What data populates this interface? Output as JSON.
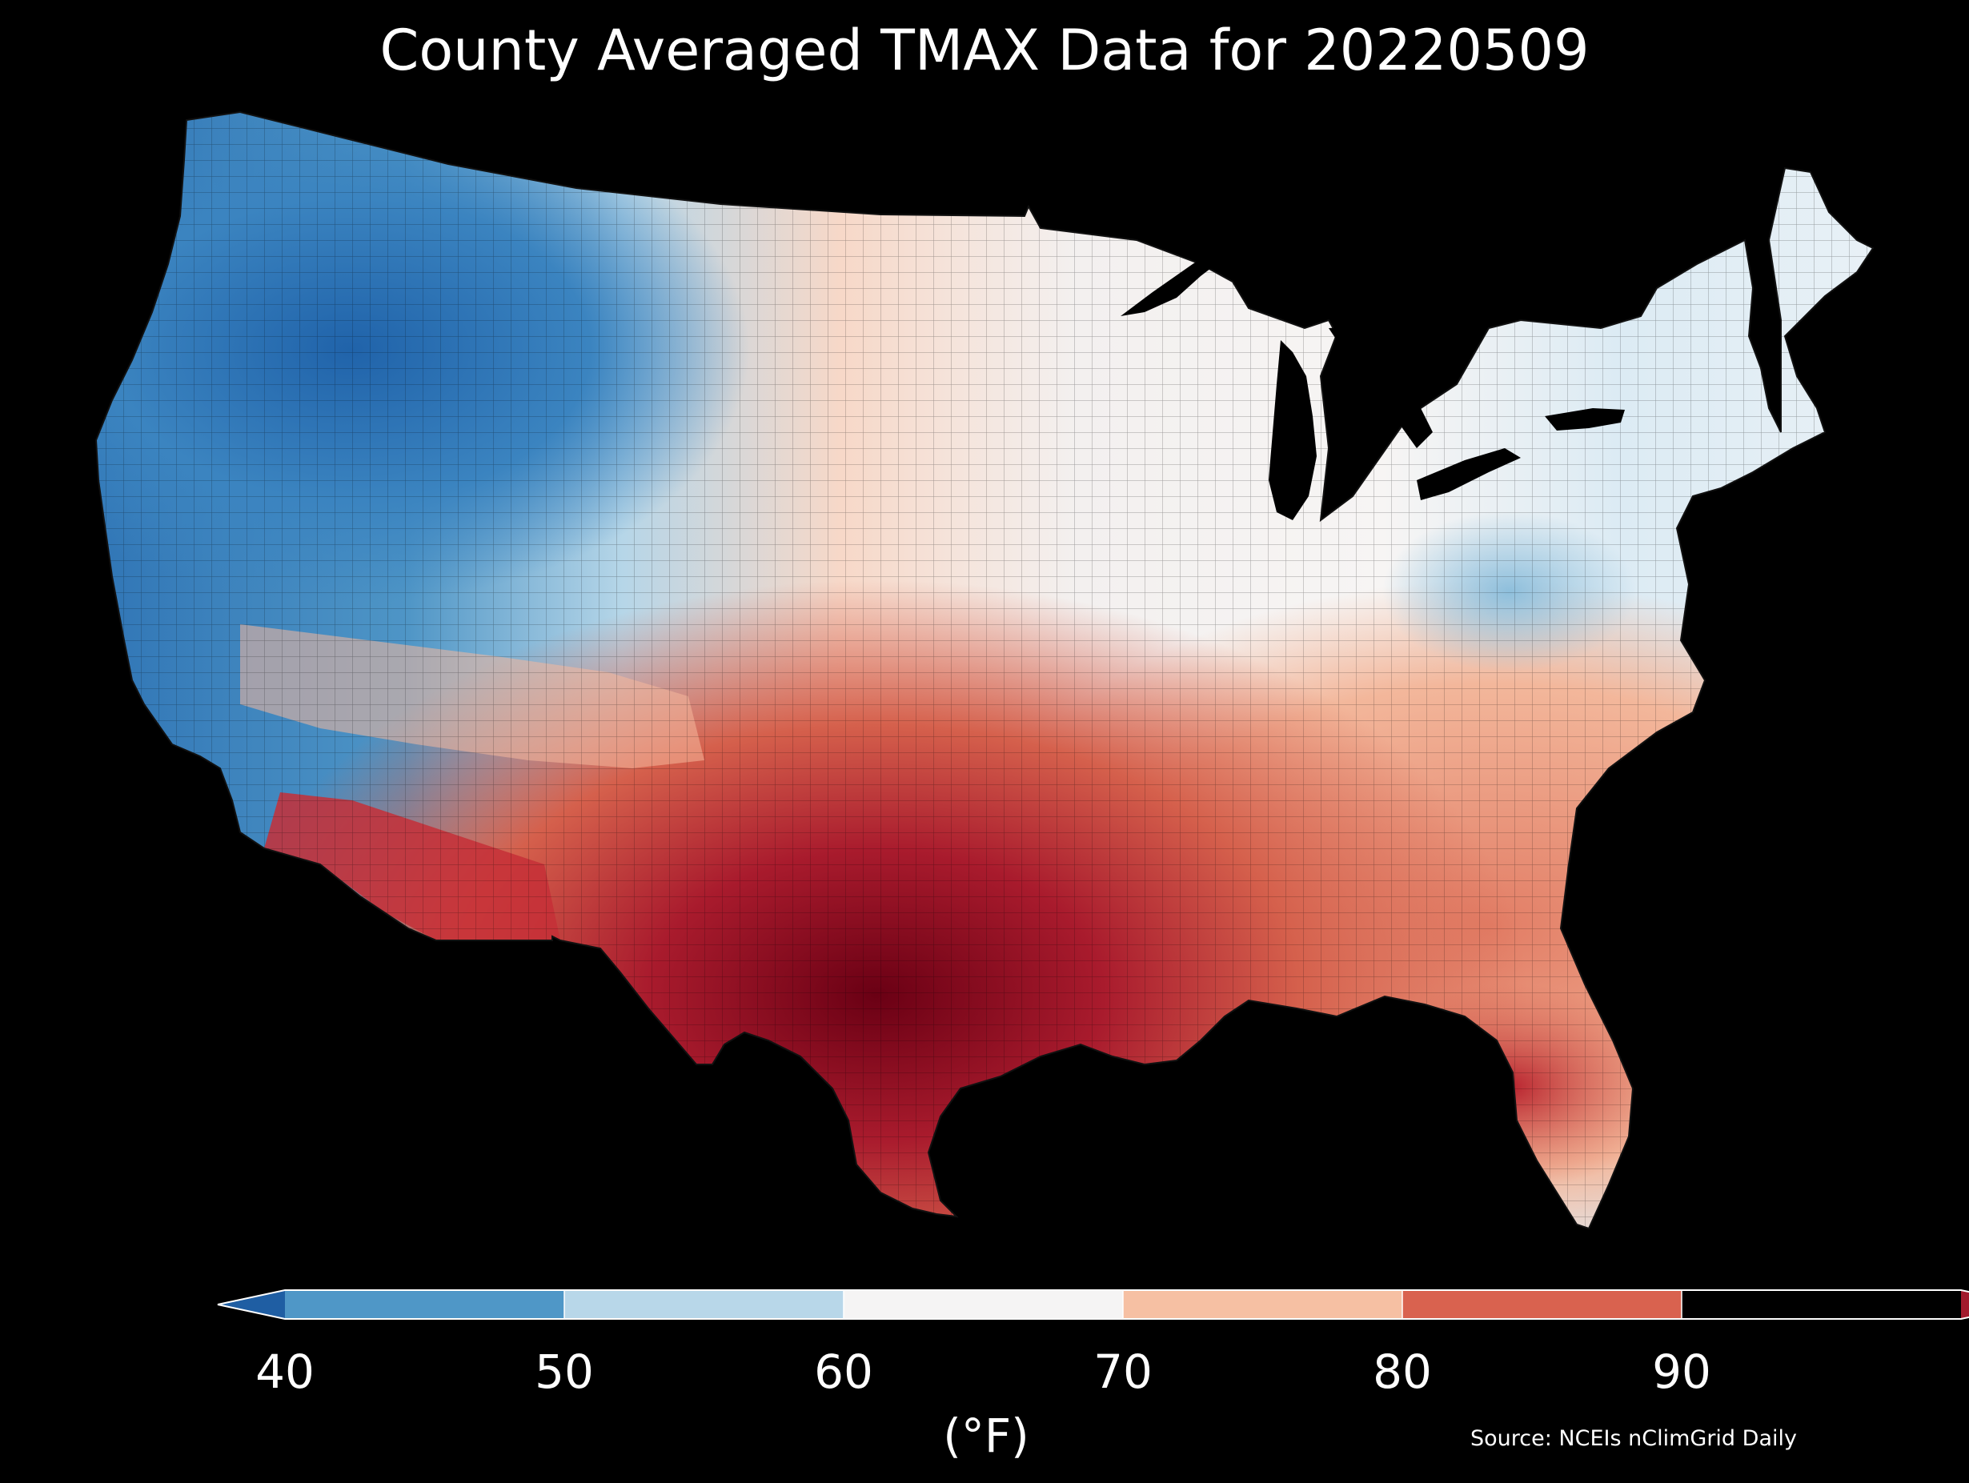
{
  "title": "County Averaged TMAX Data for 20220509",
  "colorbar": {
    "ticks": [
      "40",
      "50",
      "60",
      "70",
      "80",
      "90"
    ],
    "unit": "(°F)",
    "bins": [
      {
        "range": [
          null,
          40
        ],
        "color": "#1f5ea3"
      },
      {
        "range": [
          40,
          50
        ],
        "color": "#4f97c7"
      },
      {
        "range": [
          50,
          60
        ],
        "color": "#b8d7e9"
      },
      {
        "range": [
          60,
          70
        ],
        "color": "#f5f4f4"
      },
      {
        "range": [
          70,
          80
        ],
        "color": "#f6c0a3"
      },
      {
        "range": [
          80,
          90
        ],
        "color": "#d9624f"
      },
      {
        "range": [
          90,
          null
        ],
        "color": "#a21a2c"
      }
    ]
  },
  "source": "Source: NCEIs nClimGrid Daily",
  "map": {
    "region": "Contiguous United States",
    "variable": "TMAX",
    "date": "20220509"
  }
}
